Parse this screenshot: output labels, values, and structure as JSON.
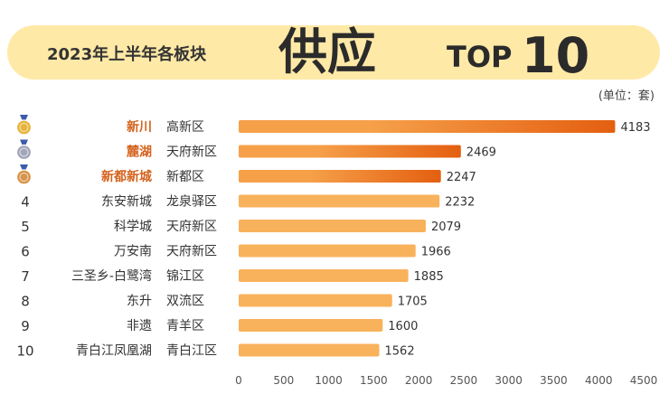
{
  "header": {
    "title_prefix": "2023年上半年各板块",
    "title_big": "供应",
    "title_top": "TOP",
    "title_num": "10"
  },
  "unit_label": "(单位：套)",
  "colors": {
    "header_bg": "#FFE9A6",
    "bar_main": "#F9B25C",
    "bar_highlight_start": "#F6A04A",
    "bar_highlight_end": "#E45F10",
    "highlight_text": "#D4621C",
    "text_dark": "#333333",
    "gold_medal": "#E7B33B",
    "silver_medal": "#A3A6B9",
    "bronze_medal": "#D8944C"
  },
  "chart_data": {
    "type": "bar",
    "orientation": "horizontal",
    "ranks": [
      "1",
      "2",
      "3",
      "4",
      "5",
      "6",
      "7",
      "8",
      "9",
      "10"
    ],
    "categories": [
      "新川",
      "麓湖",
      "新都新城",
      "东安新城",
      "科学城",
      "万安南",
      "三圣乡-白鹭湾",
      "东升",
      "非遗",
      "青白江凤凰湖"
    ],
    "districts": [
      "高新区",
      "天府新区",
      "新都区",
      "龙泉驿区",
      "天府新区",
      "天府新区",
      "锦江区",
      "双流区",
      "青羊区",
      "青白江区"
    ],
    "values": [
      4183,
      2469,
      2247,
      2232,
      2079,
      1966,
      1885,
      1705,
      1600,
      1562
    ],
    "highlight_top": 3,
    "medals": [
      "gold",
      "silver",
      "bronze"
    ],
    "xlim": [
      0,
      4500
    ],
    "xticks": [
      0,
      500,
      1000,
      1500,
      2000,
      2500,
      3000,
      3500,
      4000,
      4500
    ],
    "xtick_labels": [
      "0",
      "500",
      "1000",
      "1500",
      "2000",
      "2500",
      "3000",
      "3500",
      "4000",
      "4500"
    ],
    "grid": false,
    "legend": "none"
  }
}
